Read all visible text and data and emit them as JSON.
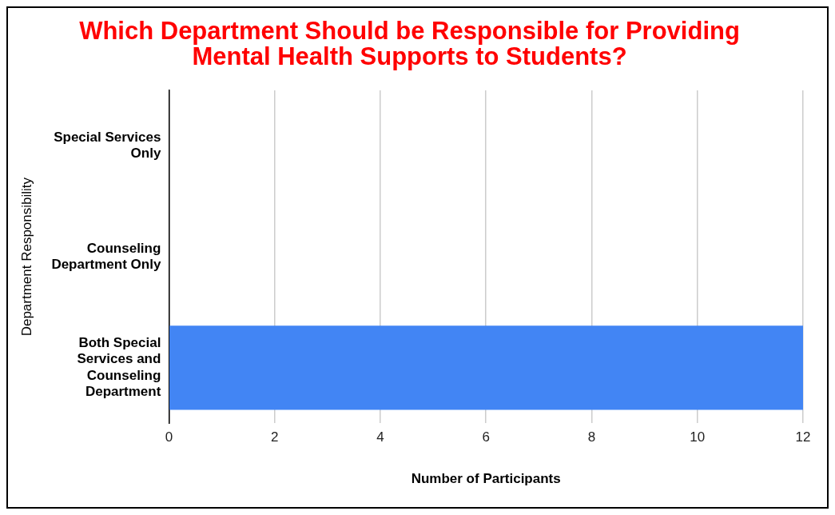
{
  "chart_data": {
    "type": "bar",
    "orientation": "horizontal",
    "title": "Which Department Should be Responsible for Providing Mental Health Supports to Students?",
    "xlabel": "Number of Participants",
    "ylabel": "Department Responsibility",
    "categories": [
      "Special Services Only",
      "Counseling Department Only",
      "Both Special Services and Counseling Department"
    ],
    "values": [
      0,
      0,
      12
    ],
    "color": "#4285f4",
    "xlim": [
      0,
      12
    ],
    "xticks": [
      0,
      2,
      4,
      6,
      8,
      10,
      12
    ],
    "grid": "x",
    "legend": false
  }
}
